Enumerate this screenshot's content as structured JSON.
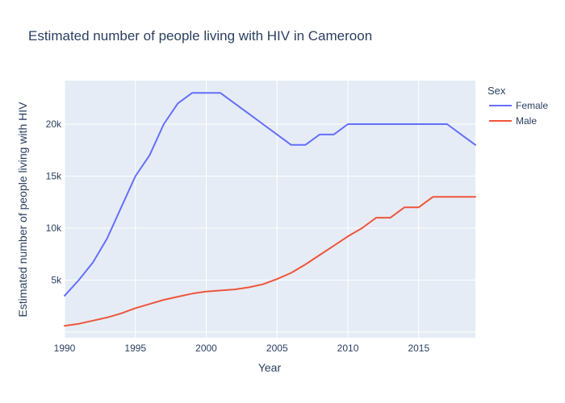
{
  "chart_data": {
    "type": "line",
    "title": "Estimated number of people living with HIV in Cameroon",
    "xlabel": "Year",
    "ylabel": "Estimated number of people living with HIV",
    "xlim": [
      1990,
      2019
    ],
    "ylim": [
      0,
      24000
    ],
    "x_ticks": [
      1990,
      1995,
      2000,
      2005,
      2010,
      2015
    ],
    "y_ticks": [
      {
        "value": 5000,
        "label": "5k"
      },
      {
        "value": 10000,
        "label": "10k"
      },
      {
        "value": 15000,
        "label": "15k"
      },
      {
        "value": 20000,
        "label": "20k"
      }
    ],
    "grid": true,
    "legend_title": "Sex",
    "legend_position": "top-right",
    "x": [
      1990,
      1991,
      1992,
      1993,
      1994,
      1995,
      1996,
      1997,
      1998,
      1999,
      2000,
      2001,
      2002,
      2003,
      2004,
      2005,
      2006,
      2007,
      2008,
      2009,
      2010,
      2011,
      2012,
      2013,
      2014,
      2015,
      2016,
      2017,
      2018,
      2019
    ],
    "series": [
      {
        "name": "Female",
        "color": "#636efa",
        "values": [
          3500,
          5000,
          6700,
          9000,
          12000,
          15000,
          17000,
          20000,
          22000,
          23000,
          23000,
          23000,
          22000,
          21000,
          20000,
          19000,
          18000,
          18000,
          19000,
          19000,
          20000,
          20000,
          20000,
          20000,
          20000,
          20000,
          20000,
          20000,
          19000,
          18000
        ]
      },
      {
        "name": "Male",
        "color": "#ef553b",
        "values": [
          600,
          800,
          1100,
          1400,
          1800,
          2300,
          2700,
          3100,
          3400,
          3700,
          3900,
          4000,
          4100,
          4300,
          4600,
          5100,
          5700,
          6500,
          7400,
          8300,
          9200,
          10000,
          11000,
          11000,
          12000,
          12000,
          13000,
          13000,
          13000,
          13000
        ]
      }
    ]
  }
}
